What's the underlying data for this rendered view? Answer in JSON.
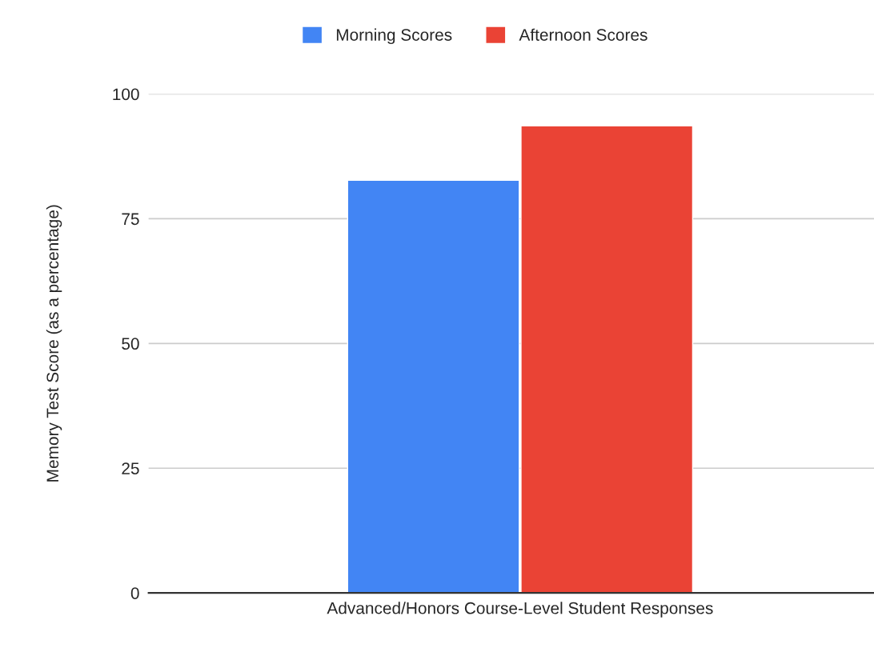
{
  "chart_data": {
    "type": "bar",
    "ylabel": "Memory Test Score (as a percentage)",
    "categories": [
      "Advanced/Honors Course-Level Student Responses"
    ],
    "series": [
      {
        "name": "Morning Scores",
        "color": "#4285f4",
        "values": [
          82.7
        ]
      },
      {
        "name": "Afternoon Scores",
        "color": "#ea4335",
        "values": [
          93.6
        ]
      }
    ],
    "ylim": [
      0,
      100
    ],
    "yticks": [
      0,
      25,
      50,
      75,
      100
    ],
    "grid": "y",
    "legend": "top"
  }
}
